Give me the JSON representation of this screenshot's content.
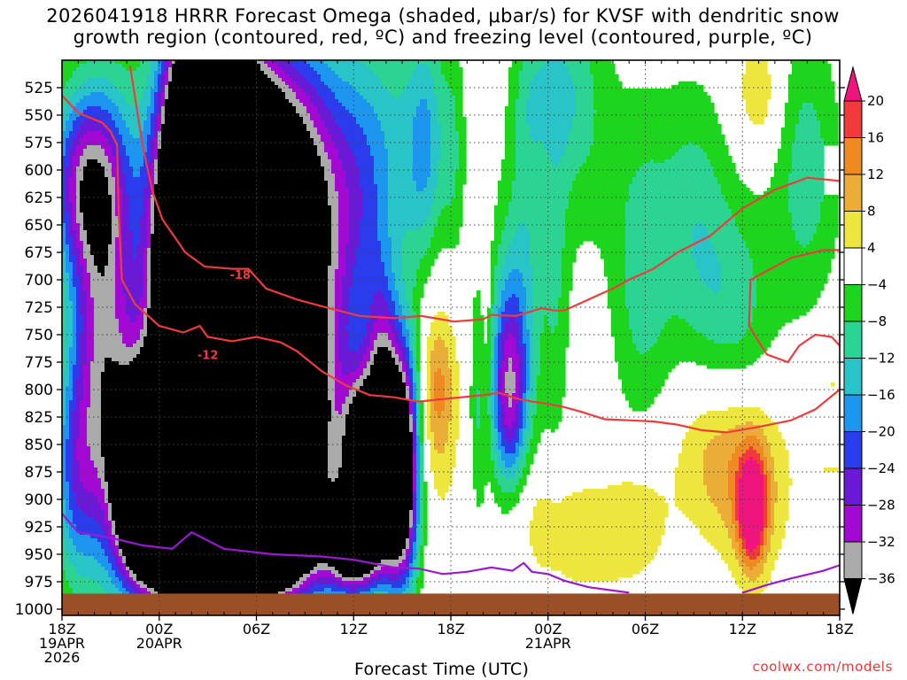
{
  "title": {
    "line1": "2026041918 HRRR Forecast Omega (shaded, μbar/s) for KVSF with dendritic snow",
    "line2": "growth region (contoured, red, ºC) and freezing level (contoured, purple, ºC)"
  },
  "xlabel": "Forecast Time (UTC)",
  "credit": "coolwx.com/models",
  "chart_data": {
    "type": "heatmap",
    "title": "2026041918 HRRR Forecast Omega (shaded, μbar/s) for KVSF with dendritic snow growth region (contoured, red, ºC) and freezing level (contoured, purple, ºC)",
    "xlabel": "Forecast Time (UTC)",
    "ylabel": "",
    "x_unit": "forecast hour from 18Z 19 APR 2026",
    "xlim": [
      0,
      48
    ],
    "x_ticks": [
      {
        "hour": 0,
        "lines": [
          "18Z",
          "19APR",
          "2026"
        ]
      },
      {
        "hour": 6,
        "lines": [
          "00Z",
          "20APR"
        ]
      },
      {
        "hour": 12,
        "lines": [
          "06Z"
        ]
      },
      {
        "hour": 18,
        "lines": [
          "12Z"
        ]
      },
      {
        "hour": 24,
        "lines": [
          "18Z"
        ]
      },
      {
        "hour": 30,
        "lines": [
          "00Z",
          "21APR"
        ]
      },
      {
        "hour": 36,
        "lines": [
          "06Z"
        ]
      },
      {
        "hour": 42,
        "lines": [
          "12Z"
        ]
      },
      {
        "hour": 48,
        "lines": [
          "18Z"
        ]
      }
    ],
    "y_unit": "pressure (mb), top of plot ~500 mb",
    "ylim": [
      1000,
      500
    ],
    "y_ticks": [
      525,
      550,
      575,
      600,
      625,
      650,
      675,
      700,
      725,
      750,
      775,
      800,
      825,
      850,
      875,
      900,
      925,
      950,
      975,
      1000
    ],
    "grid": true,
    "colorbar": {
      "labels": [
        "20",
        "16",
        "12",
        "8",
        "4",
        "−4",
        "−8",
        "−12",
        "−16",
        "−20",
        "−24",
        "−28",
        "−32",
        "−36"
      ],
      "bins": [
        {
          "lo": 20,
          "hi": null,
          "color": "#f0157e"
        },
        {
          "lo": 16,
          "hi": 20,
          "color": "#f23a3c"
        },
        {
          "lo": 12,
          "hi": 16,
          "color": "#ef8a23"
        },
        {
          "lo": 8,
          "hi": 12,
          "color": "#e9ad38"
        },
        {
          "lo": 4,
          "hi": 8,
          "color": "#ece63f"
        },
        {
          "lo": -4,
          "hi": 4,
          "color": "#ffffff"
        },
        {
          "lo": -8,
          "hi": -4,
          "color": "#1ed51e"
        },
        {
          "lo": -12,
          "hi": -8,
          "color": "#2cd493"
        },
        {
          "lo": -16,
          "hi": -12,
          "color": "#28c4c8"
        },
        {
          "lo": -20,
          "hi": -16,
          "color": "#1d96f0"
        },
        {
          "lo": -24,
          "hi": -20,
          "color": "#2b3cec"
        },
        {
          "lo": -28,
          "hi": -24,
          "color": "#6a1ad6"
        },
        {
          "lo": -32,
          "hi": -28,
          "color": "#a20ad4"
        },
        {
          "lo": -36,
          "hi": -32,
          "color": "#aaaaaa"
        },
        {
          "lo": null,
          "hi": -36,
          "color": "#000000"
        }
      ]
    },
    "omega_centers": [
      {
        "hour": 1.5,
        "p": 610,
        "omega": -28,
        "sx": 1.6,
        "sp": 60
      },
      {
        "hour": 2.2,
        "p": 770,
        "omega": -24,
        "sx": 1.3,
        "sp": 120
      },
      {
        "hour": 0.8,
        "p": 880,
        "omega": -16,
        "sx": 1.0,
        "sp": 70
      },
      {
        "hour": 3.5,
        "p": 760,
        "omega": -12,
        "sx": 1.2,
        "sp": 160
      },
      {
        "hour": 5.0,
        "p": 880,
        "omega": -70,
        "sx": 1.2,
        "sp": 60
      },
      {
        "hour": 6.3,
        "p": 935,
        "omega": -55,
        "sx": 1.2,
        "sp": 25
      },
      {
        "hour": 7.4,
        "p": 870,
        "omega": -60,
        "sx": 1.2,
        "sp": 90
      },
      {
        "hour": 8.6,
        "p": 690,
        "omega": -130,
        "sx": 1.8,
        "sp": 130
      },
      {
        "hour": 9.4,
        "p": 590,
        "omega": -95,
        "sx": 1.2,
        "sp": 85
      },
      {
        "hour": 10.8,
        "p": 840,
        "omega": -85,
        "sx": 1.5,
        "sp": 80
      },
      {
        "hour": 13.8,
        "p": 850,
        "omega": -62,
        "sx": 2.0,
        "sp": 80
      },
      {
        "hour": 11.8,
        "p": 630,
        "omega": -42,
        "sx": 1.6,
        "sp": 90
      },
      {
        "hour": 13.8,
        "p": 620,
        "omega": -30,
        "sx": 1.8,
        "sp": 95
      },
      {
        "hour": 16.0,
        "p": 670,
        "omega": -22,
        "sx": 1.6,
        "sp": 120
      },
      {
        "hour": 12.0,
        "p": 950,
        "omega": -38,
        "sx": 2.6,
        "sp": 30
      },
      {
        "hour": 18.5,
        "p": 860,
        "omega": -45,
        "sx": 0.8,
        "sp": 50
      },
      {
        "hour": 18.0,
        "p": 940,
        "omega": -32,
        "sx": 1.1,
        "sp": 30
      },
      {
        "hour": 19.7,
        "p": 795,
        "omega": -24,
        "sx": 0.7,
        "sp": 70
      },
      {
        "hour": 18.5,
        "p": 930,
        "omega": -22,
        "sx": 1.6,
        "sp": 35
      },
      {
        "hour": 20.6,
        "p": 870,
        "omega": -44,
        "sx": 0.8,
        "sp": 65
      },
      {
        "hour": 21.2,
        "p": 860,
        "omega": -20,
        "sx": 0.7,
        "sp": 85
      },
      {
        "hour": 18.5,
        "p": 620,
        "omega": -14,
        "sx": 1.4,
        "sp": 100
      },
      {
        "hour": 21.3,
        "p": 580,
        "omega": -10,
        "sx": 1.8,
        "sp": 90
      },
      {
        "hour": 22.5,
        "p": 580,
        "omega": -10,
        "sx": 0.8,
        "sp": 80
      },
      {
        "hour": 24.2,
        "p": 590,
        "omega": -6,
        "sx": 0.5,
        "sp": 80
      },
      {
        "hour": 23.2,
        "p": 800,
        "omega": 8,
        "sx": 0.7,
        "sp": 45
      },
      {
        "hour": 23.2,
        "p": 800,
        "omega": 6,
        "sx": 1.1,
        "sp": 100
      },
      {
        "hour": 25.8,
        "p": 820,
        "omega": -8,
        "sx": 0.5,
        "sp": 90
      },
      {
        "hour": 26.2,
        "p": 770,
        "omega": 7,
        "sx": 0.3,
        "sp": 80
      },
      {
        "hour": 27.6,
        "p": 800,
        "omega": -20,
        "sx": 0.7,
        "sp": 60
      },
      {
        "hour": 27.6,
        "p": 780,
        "omega": -12,
        "sx": 1.0,
        "sp": 110
      },
      {
        "hour": 28.8,
        "p": 660,
        "omega": -8,
        "sx": 0.8,
        "sp": 140
      },
      {
        "hour": 30.5,
        "p": 700,
        "omega": -7,
        "sx": 0.6,
        "sp": 130
      },
      {
        "hour": 32.0,
        "p": 550,
        "omega": -8,
        "sx": 1.5,
        "sp": 90
      },
      {
        "hour": 30.0,
        "p": 530,
        "omega": -8,
        "sx": 1.4,
        "sp": 40
      },
      {
        "hour": 35.8,
        "p": 690,
        "omega": -10,
        "sx": 1.4,
        "sp": 110
      },
      {
        "hour": 39.0,
        "p": 640,
        "omega": -9,
        "sx": 1.5,
        "sp": 90
      },
      {
        "hour": 41.5,
        "p": 730,
        "omega": -10,
        "sx": 1.8,
        "sp": 80
      },
      {
        "hour": 46.0,
        "p": 600,
        "omega": -10,
        "sx": 1.5,
        "sp": 95
      },
      {
        "hour": 43.0,
        "p": 530,
        "omega": 8,
        "sx": 1.0,
        "sp": 40
      },
      {
        "hour": 28.5,
        "p": 910,
        "omega": 6,
        "sx": 1.6,
        "sp": 40
      },
      {
        "hour": 32.0,
        "p": 935,
        "omega": 7,
        "sx": 2.2,
        "sp": 35
      },
      {
        "hour": 35.5,
        "p": 915,
        "omega": 6,
        "sx": 1.5,
        "sp": 45
      },
      {
        "hour": 40.5,
        "p": 855,
        "omega": 10,
        "sx": 2.0,
        "sp": 55
      },
      {
        "hour": 42.6,
        "p": 910,
        "omega": 24,
        "sx": 0.6,
        "sp": 35
      },
      {
        "hour": 42.8,
        "p": 890,
        "omega": 8,
        "sx": 1.6,
        "sp": 60
      },
      {
        "hour": 47.5,
        "p": 830,
        "omega": 6,
        "sx": 1.2,
        "sp": 50
      }
    ],
    "dgz_contours": [
      {
        "label": "-18",
        "label_at": {
          "hour": 11.0,
          "p": 695
        },
        "points": [
          [
            4.2,
            505
          ],
          [
            5.0,
            580
          ],
          [
            5.6,
            620
          ],
          [
            6.2,
            645
          ],
          [
            7.0,
            662
          ],
          [
            7.6,
            675
          ],
          [
            8.8,
            688
          ],
          [
            10.5,
            690
          ],
          [
            11.5,
            690
          ],
          [
            12.6,
            708
          ],
          [
            14.5,
            718
          ],
          [
            16.5,
            726
          ],
          [
            18.4,
            733
          ],
          [
            20.5,
            735
          ],
          [
            22.2,
            733
          ],
          [
            24.2,
            738
          ],
          [
            26.0,
            736
          ],
          [
            26.5,
            732
          ],
          [
            28.0,
            733
          ],
          [
            29.6,
            726
          ],
          [
            30.4,
            728
          ],
          [
            31.0,
            728
          ],
          [
            32.5,
            718
          ],
          [
            34.0,
            708
          ],
          [
            35.0,
            700
          ],
          [
            36.5,
            690
          ],
          [
            38.0,
            675
          ],
          [
            40.0,
            660
          ],
          [
            42.0,
            635
          ],
          [
            44.0,
            618
          ],
          [
            46.0,
            607
          ],
          [
            48.0,
            610
          ]
        ]
      },
      {
        "label": "-12",
        "label_at": {
          "hour": 9.0,
          "p": 768
        },
        "points": [
          [
            0.0,
            532
          ],
          [
            1.0,
            548
          ],
          [
            2.5,
            557
          ],
          [
            3.0,
            565
          ],
          [
            3.4,
            577
          ],
          [
            3.5,
            640
          ],
          [
            3.7,
            700
          ],
          [
            4.5,
            722
          ],
          [
            6.0,
            742
          ],
          [
            7.5,
            748
          ],
          [
            8.5,
            742
          ],
          [
            9.0,
            752
          ],
          [
            10.5,
            756
          ],
          [
            12.0,
            752
          ],
          [
            13.5,
            757
          ],
          [
            14.5,
            765
          ],
          [
            16.0,
            783
          ],
          [
            17.5,
            796
          ],
          [
            19.0,
            805
          ],
          [
            20.5,
            807
          ],
          [
            22.0,
            811
          ],
          [
            24.0,
            808
          ],
          [
            26.0,
            805
          ],
          [
            27.0,
            803
          ],
          [
            28.0,
            808
          ],
          [
            29.0,
            811
          ],
          [
            30.0,
            813
          ],
          [
            31.0,
            816
          ],
          [
            32.0,
            820
          ],
          [
            33.5,
            827
          ],
          [
            35.0,
            828
          ],
          [
            36.5,
            829
          ],
          [
            38.0,
            832
          ],
          [
            39.5,
            837
          ],
          [
            41.0,
            839
          ],
          [
            43.0,
            834
          ],
          [
            45.0,
            828
          ],
          [
            46.5,
            818
          ],
          [
            48.0,
            800
          ]
        ]
      },
      {
        "label": "",
        "label_at": null,
        "points": [
          [
            48.0,
            673
          ],
          [
            47.0,
            673
          ],
          [
            45.0,
            680
          ],
          [
            44.0,
            688
          ],
          [
            42.5,
            700
          ],
          [
            42.4,
            742
          ],
          [
            43.5,
            768
          ],
          [
            44.8,
            775
          ],
          [
            45.5,
            760
          ],
          [
            46.5,
            750
          ],
          [
            47.5,
            752
          ],
          [
            48.0,
            760
          ]
        ]
      }
    ],
    "freezing_level": [
      [
        [
          0.0,
          913
        ],
        [
          1.0,
          930
        ],
        [
          3.0,
          935
        ],
        [
          5.0,
          942
        ],
        [
          6.8,
          945
        ],
        [
          8.0,
          930
        ],
        [
          10.0,
          945
        ],
        [
          13.0,
          950
        ],
        [
          16.0,
          952
        ],
        [
          18.0,
          955
        ],
        [
          20.5,
          962
        ],
        [
          22.0,
          963
        ],
        [
          23.5,
          968
        ],
        [
          25.0,
          966
        ],
        [
          26.5,
          962
        ],
        [
          27.8,
          965
        ],
        [
          28.5,
          958
        ],
        [
          29.0,
          966
        ],
        [
          30.0,
          968
        ],
        [
          31.0,
          974
        ],
        [
          32.5,
          980
        ],
        [
          35.0,
          985
        ]
      ],
      [
        [
          42.0,
          985
        ],
        [
          43.5,
          978
        ],
        [
          45.0,
          972
        ],
        [
          47.0,
          965
        ],
        [
          48.0,
          960
        ]
      ]
    ],
    "terrain_top_mb": 985
  }
}
